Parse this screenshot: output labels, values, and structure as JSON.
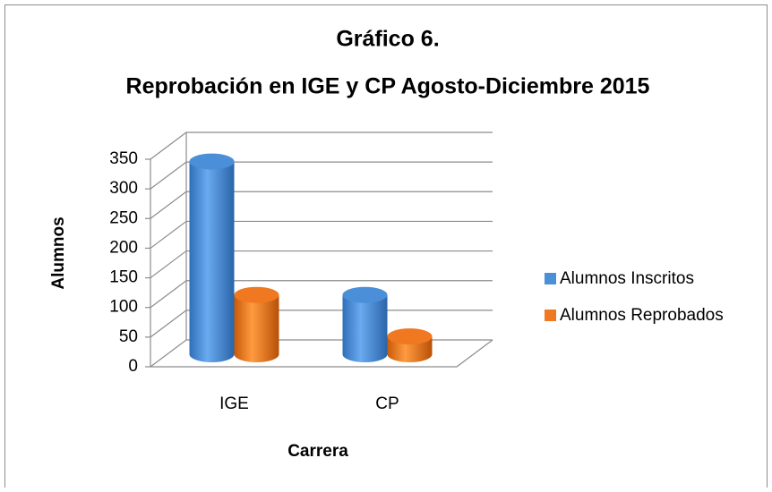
{
  "chart_data": {
    "type": "bar3d",
    "title": "Gráfico 6.",
    "subtitle": "Reprobación en IGE y CP Agosto-Diciembre 2015",
    "x_label": "Carrera",
    "y_label": "Alumnos",
    "categories": [
      "IGE",
      "CP"
    ],
    "series": [
      {
        "name": "Alumnos Inscritos",
        "color": "#4a8fd8",
        "values": [
          325,
          100
        ]
      },
      {
        "name": "Alumnos Reprobados",
        "color": "#f07820",
        "values": [
          100,
          30
        ]
      }
    ],
    "ylim": [
      0,
      350
    ],
    "yticks": [
      0,
      50,
      100,
      150,
      200,
      250,
      300,
      350
    ],
    "grid": true,
    "legend": "right"
  }
}
